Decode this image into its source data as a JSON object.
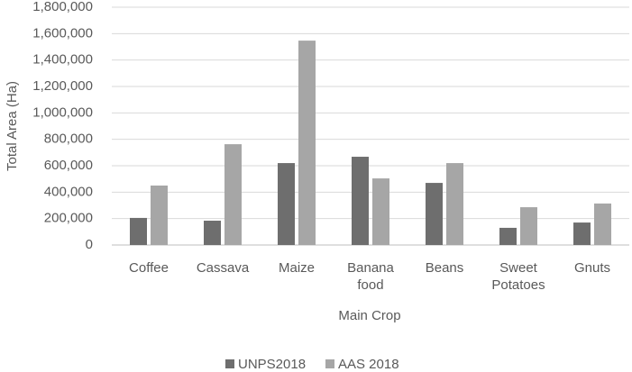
{
  "chart_data": {
    "type": "bar",
    "y_label": "Total Area (Ha)",
    "x_label": "Main Crop",
    "categories": [
      "Coffee",
      "Cassava",
      "Maize",
      "Banana food",
      "Beans",
      "Sweet Potatoes",
      "Gnuts"
    ],
    "series": [
      {
        "name": "UNPS2018",
        "color": "#6e6e6e",
        "values": [
          205000,
          184000,
          620000,
          668000,
          470000,
          130000,
          170000
        ]
      },
      {
        "name": "AAS 2018",
        "color": "#a6a6a6",
        "values": [
          450000,
          763000,
          1547000,
          504000,
          620000,
          286000,
          314000
        ]
      }
    ],
    "ylim": [
      0,
      1800000
    ],
    "yticks": [
      0,
      {
        "value": 200000,
        "label": "200,000"
      },
      {
        "value": 400000,
        "label": "400,000"
      },
      {
        "value": 600000,
        "label": "600,000"
      },
      {
        "value": 800000,
        "label": "800,000"
      },
      {
        "value": 1000000,
        "label": "1,000,000"
      },
      {
        "value": 1200000,
        "label": "1,200,000"
      },
      {
        "value": 1400000,
        "label": "1,400,000"
      },
      {
        "value": 1600000,
        "label": "1,600,000"
      },
      {
        "value": 1800000,
        "label": "1,800,000"
      }
    ],
    "grid": true,
    "legend": "bottom"
  }
}
